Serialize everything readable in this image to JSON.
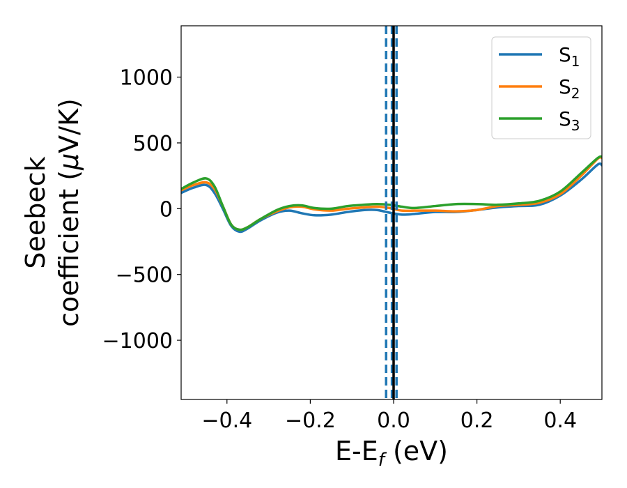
{
  "chart_data": {
    "type": "line",
    "xlabel": "E-E",
    "xlabel_sub": "f",
    "xlabel_unit": " (eV)",
    "ylabel_line1": "Seebeck",
    "ylabel_line2": "coefficient  (",
    "ylabel_mu": "μ",
    "ylabel_unit": "V/K)",
    "xlim": [
      -0.51,
      0.5
    ],
    "ylim": [
      -1450,
      1390
    ],
    "x_ticks": [
      -0.4,
      -0.2,
      0.0,
      0.2,
      0.4
    ],
    "x_tick_labels": [
      "−0.4",
      "−0.2",
      "0.0",
      "0.2",
      "0.4"
    ],
    "y_ticks": [
      -1000,
      -500,
      0,
      500,
      1000
    ],
    "y_tick_labels": [
      "−1000",
      "−500",
      "0",
      "500",
      "1000"
    ],
    "grid": false,
    "legend_position": "top-right",
    "vlines": [
      {
        "x": -0.018,
        "color": "#1f77b4",
        "style": "dashed"
      },
      {
        "x": -0.004,
        "color": "#1f77b4",
        "style": "dashed"
      },
      {
        "x": 0.007,
        "color": "#1f77b4",
        "style": "dashed"
      },
      {
        "x": 0.0,
        "color": "#000000",
        "style": "solid"
      }
    ],
    "series": [
      {
        "name": "S",
        "sub": "1",
        "color": "#1f77b4",
        "x": [
          -0.51,
          -0.48,
          -0.45,
          -0.43,
          -0.41,
          -0.39,
          -0.37,
          -0.35,
          -0.32,
          -0.28,
          -0.25,
          -0.22,
          -0.19,
          -0.15,
          -0.11,
          -0.07,
          -0.04,
          -0.01,
          0.02,
          0.05,
          0.1,
          0.15,
          0.2,
          0.25,
          0.3,
          0.35,
          0.4,
          0.45,
          0.49,
          0.5
        ],
        "y": [
          120,
          160,
          180,
          120,
          0,
          -130,
          -175,
          -150,
          -90,
          -30,
          -15,
          -35,
          -50,
          -45,
          -25,
          -10,
          -10,
          -30,
          -45,
          -40,
          -25,
          -25,
          -10,
          10,
          20,
          30,
          100,
          220,
          335,
          330
        ]
      },
      {
        "name": "S",
        "sub": "2",
        "color": "#ff7f0e",
        "x": [
          -0.51,
          -0.48,
          -0.45,
          -0.43,
          -0.41,
          -0.39,
          -0.37,
          -0.35,
          -0.32,
          -0.28,
          -0.25,
          -0.22,
          -0.19,
          -0.15,
          -0.11,
          -0.07,
          -0.04,
          -0.01,
          0.02,
          0.05,
          0.1,
          0.15,
          0.2,
          0.25,
          0.3,
          0.35,
          0.4,
          0.45,
          0.49,
          0.5
        ],
        "y": [
          140,
          180,
          200,
          150,
          20,
          -120,
          -160,
          -140,
          -80,
          -20,
          10,
          15,
          -5,
          -15,
          0,
          10,
          15,
          5,
          -15,
          -15,
          -15,
          -20,
          -10,
          20,
          30,
          45,
          110,
          250,
          380,
          385
        ]
      },
      {
        "name": "S",
        "sub": "3",
        "color": "#2ca02c",
        "x": [
          -0.51,
          -0.48,
          -0.45,
          -0.43,
          -0.41,
          -0.39,
          -0.37,
          -0.35,
          -0.32,
          -0.28,
          -0.25,
          -0.22,
          -0.19,
          -0.15,
          -0.11,
          -0.07,
          -0.04,
          -0.01,
          0.02,
          0.05,
          0.1,
          0.15,
          0.2,
          0.25,
          0.3,
          0.35,
          0.4,
          0.45,
          0.49,
          0.5
        ],
        "y": [
          150,
          200,
          230,
          170,
          20,
          -120,
          -160,
          -140,
          -80,
          -10,
          20,
          25,
          5,
          0,
          20,
          30,
          35,
          30,
          15,
          5,
          20,
          35,
          35,
          30,
          40,
          60,
          130,
          270,
          385,
          395
        ]
      }
    ]
  }
}
